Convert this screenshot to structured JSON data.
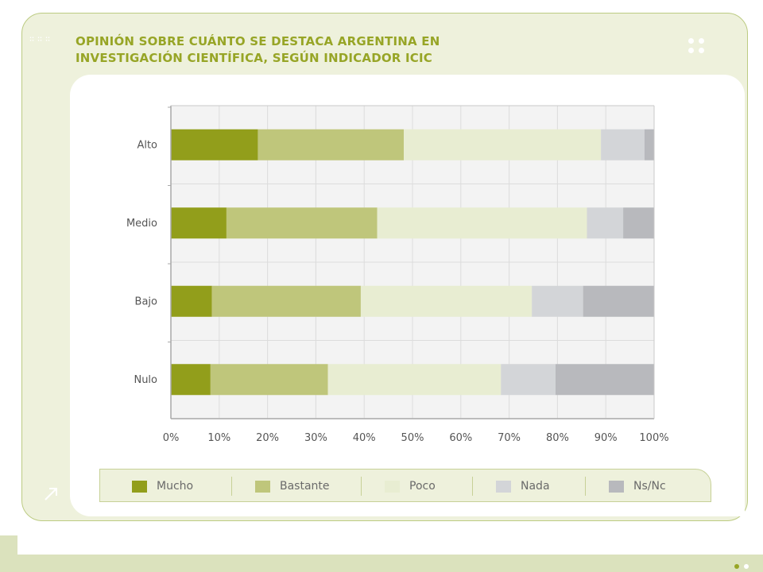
{
  "title_lines": [
    "OPINIÓN SOBRE CUÁNTO SE DESTACA ARGENTINA EN",
    "INVESTIGACIÓN CIENTÍFICA, SEGÚN INDICADOR ICIC"
  ],
  "colors": {
    "title": "#97a526",
    "card_background": "#eef1dc",
    "card_border": "#bccb82",
    "band": "#dbe2bd"
  },
  "icons": {
    "arrow": "diagonal-arrow-icon"
  },
  "chart_data": {
    "type": "bar",
    "orientation": "horizontal",
    "stacked": true,
    "title": "OPINIÓN SOBRE CUÁNTO SE DESTACA ARGENTINA EN INVESTIGACIÓN CIENTÍFICA, SEGÚN INDICADOR ICIC",
    "categories": [
      "Alto",
      "Medio",
      "Bajo",
      "Nulo"
    ],
    "xlim": [
      0,
      100
    ],
    "x_ticks": [
      "0%",
      "10%",
      "20%",
      "30%",
      "40%",
      "50%",
      "60%",
      "70%",
      "80%",
      "90%",
      "100%"
    ],
    "grid": true,
    "legend_position": "bottom",
    "series": [
      {
        "name": "Mucho",
        "color": "#929e1b",
        "values": [
          18,
          11.5,
          8.5,
          8.2
        ]
      },
      {
        "name": "Bastante",
        "color": "#bfc67b",
        "values": [
          30.2,
          31.2,
          30.8,
          24.3
        ]
      },
      {
        "name": "Poco",
        "color": "#e8edd2",
        "values": [
          40.8,
          43.4,
          35.4,
          35.8
        ]
      },
      {
        "name": "Nada",
        "color": "#d3d5d8",
        "values": [
          9,
          7.5,
          10.6,
          11.3
        ]
      },
      {
        "name": "Ns/Nc",
        "color": "#b8b9bd",
        "values": [
          2,
          6.4,
          14.7,
          20.4
        ]
      }
    ]
  }
}
